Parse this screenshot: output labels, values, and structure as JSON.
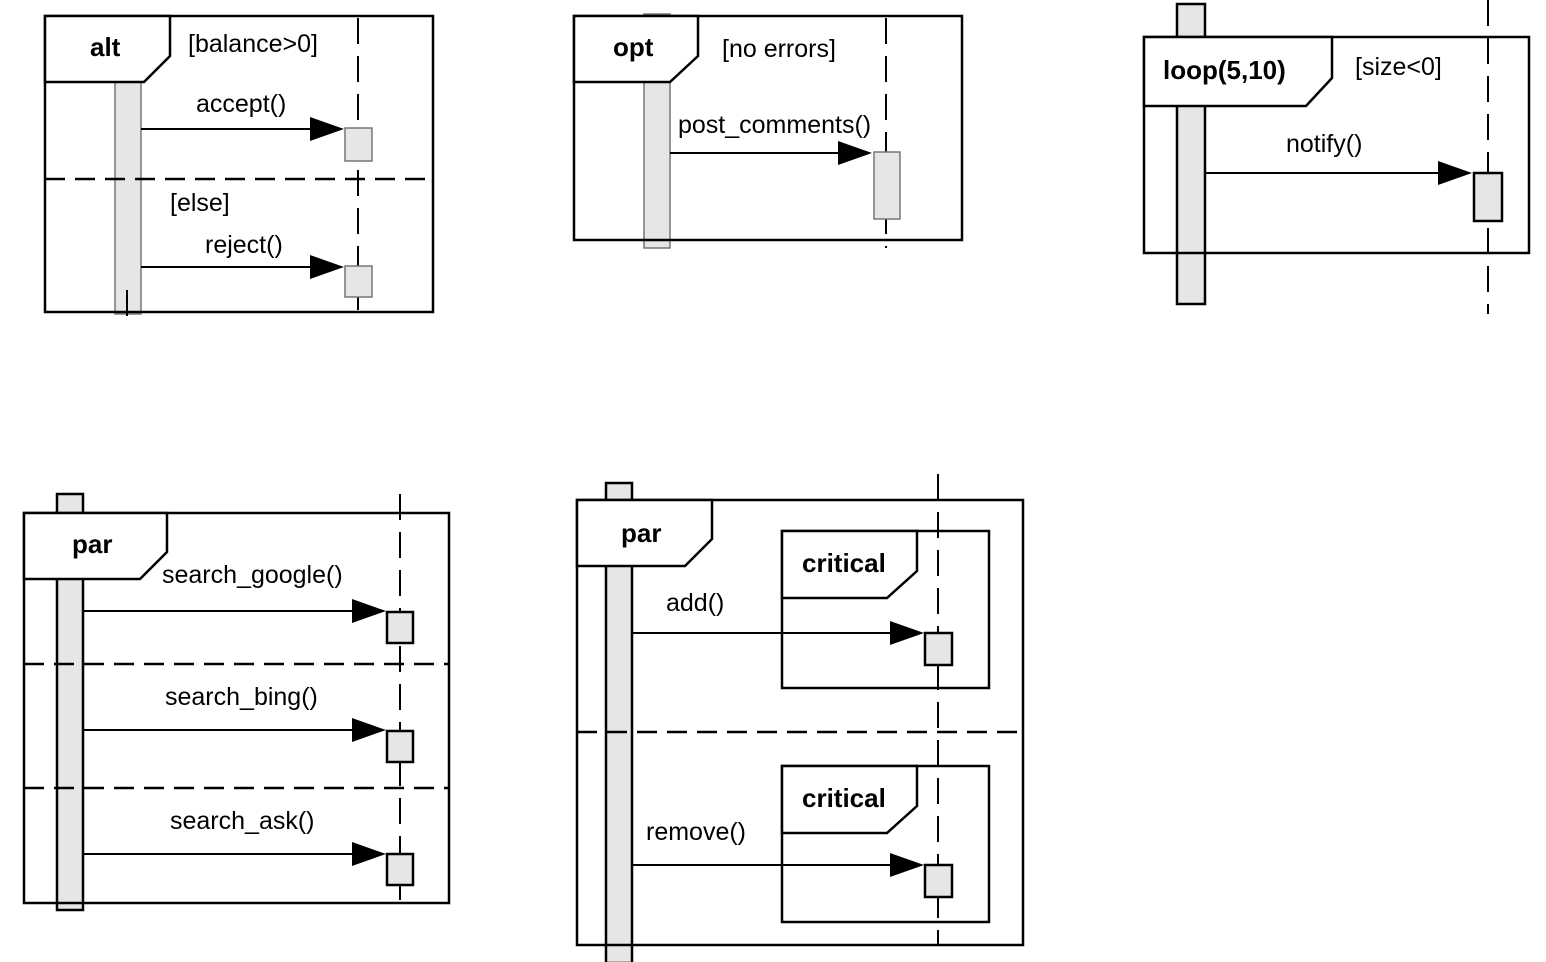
{
  "diagrams": {
    "alt": {
      "operator": "alt",
      "guard1": "[balance>0]",
      "msg1": "accept()",
      "guard2": "[else]",
      "msg2": "reject()"
    },
    "opt": {
      "operator": "opt",
      "guard": "[no errors]",
      "msg": "post_comments()"
    },
    "loop": {
      "operator": "loop(5,10)",
      "guard": "[size<0]",
      "msg": "notify()"
    },
    "par1": {
      "operator": "par",
      "msg1": "search_google()",
      "msg2": "search_bing()",
      "msg3": "search_ask()"
    },
    "par2": {
      "operator": "par",
      "critical1": "critical",
      "msg1": "add()",
      "critical2": "critical",
      "msg2": "remove()"
    }
  }
}
